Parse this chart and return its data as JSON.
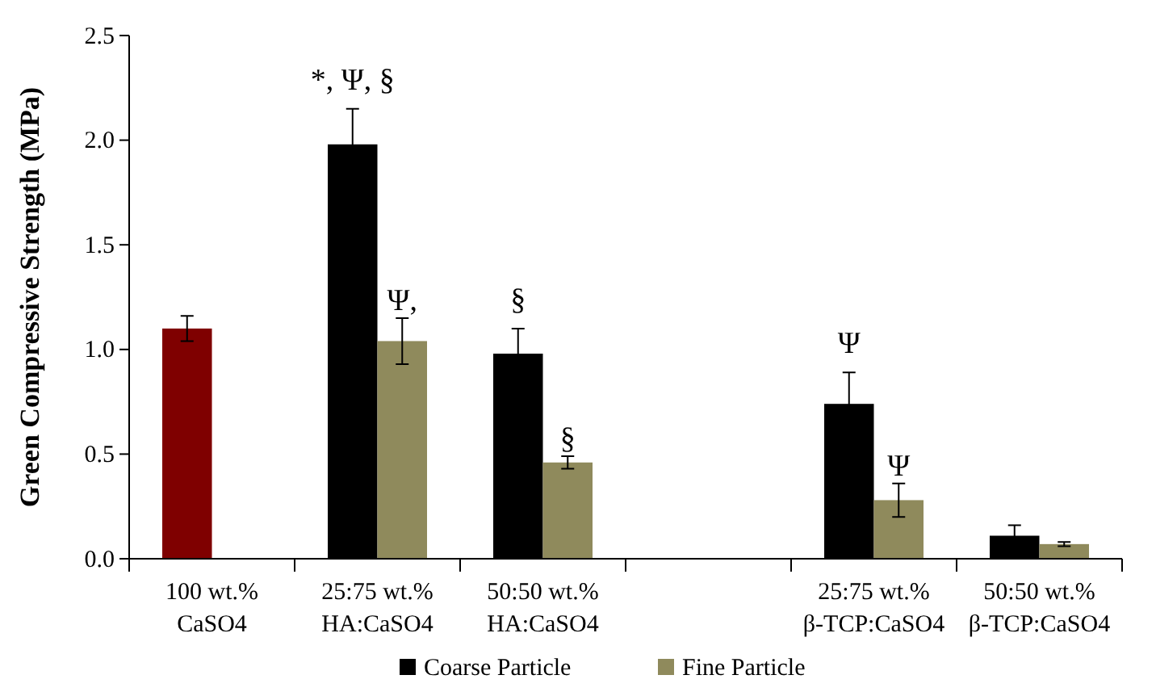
{
  "chart_data": {
    "type": "bar",
    "ylabel": "Green Compressive Strength (MPa)",
    "categories": [
      "100 wt.%\nCaSO4",
      "25:75 wt.%\nHA:CaSO4",
      "50:50 wt.%\nHA:CaSO4",
      null,
      "25:75 wt.%\nβ-TCP:CaSO4",
      "50:50 wt.%\nβ-TCP:CaSO4"
    ],
    "series": [
      {
        "name": "Coarse Particle",
        "color": "#000000",
        "colors": [
          "#7f0000",
          "#000000",
          "#000000",
          null,
          "#000000",
          "#000000"
        ],
        "values": [
          1.1,
          1.98,
          0.98,
          null,
          0.74,
          0.11
        ],
        "errors": [
          0.06,
          0.17,
          0.12,
          null,
          0.15,
          0.05
        ]
      },
      {
        "name": "Fine Particle",
        "color": "#8f8a5c",
        "values": [
          null,
          1.04,
          0.46,
          null,
          0.28,
          0.07
        ],
        "errors": [
          null,
          0.11,
          0.03,
          null,
          0.08,
          0.01
        ]
      }
    ],
    "ylim": [
      0,
      2.5
    ],
    "yticks": [
      {
        "value": 0,
        "label": "0.0"
      },
      {
        "value": 0.5,
        "label": "0.5"
      },
      {
        "value": 1,
        "label": "1.0"
      },
      {
        "value": 1.5,
        "label": "1.5"
      },
      {
        "value": 2,
        "label": "2.0"
      },
      {
        "value": 2.5,
        "label": "2.5"
      }
    ],
    "annotations": [
      "*, Ψ, §",
      {
        "text": "Ψ,",
        "x": "25:75 wt.%\nHA:CaSO4",
        "y": 1.15
      },
      "§",
      {
        "text": "§",
        "x": "50:50 wt.%\nHA:CaSO4",
        "y": 0.49
      },
      "Ψ",
      {
        "text": "Ψ",
        "x": "25:75 wt.%\nβ-TCP:CaSO4",
        "y": 0.36
      }
    ],
    "grid": false,
    "legend": "bottom"
  }
}
